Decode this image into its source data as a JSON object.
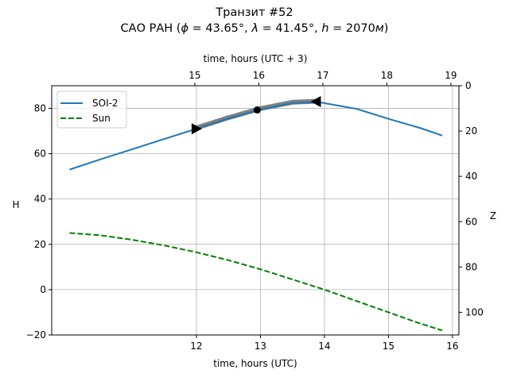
{
  "chart_data": {
    "type": "line",
    "title": "Транзит #52",
    "subtitle": "САО РАН ($\\phi = 43.65°, \\lambda = 41.45°, h = 2070 м$)",
    "subtitle_parts": {
      "prefix": "САО РАН (",
      "phi": "ϕ",
      "phi_val": " = 43.65°, ",
      "lambda": "λ",
      "lambda_val": " = 41.45°, ",
      "h": "h",
      "h_val": " = 2070",
      "unit": "м",
      "suffix": ")"
    },
    "xlabel": "time, hours (UTC)",
    "x2label": "time, hours (UTC + 3)",
    "ylabel": "H",
    "y2label": "Z",
    "xlim": [
      9.74,
      16.1
    ],
    "ylim": [
      -20,
      90
    ],
    "y2lim": [
      0,
      110
    ],
    "xticks": [
      "12",
      "13",
      "14",
      "15",
      "16"
    ],
    "xtick_values": [
      12,
      13,
      14,
      15,
      16
    ],
    "x2ticks": [
      "15",
      "16",
      "17",
      "18",
      "19"
    ],
    "yticks": [
      "−20",
      "0",
      "20",
      "40",
      "60",
      "80"
    ],
    "ytick_values": [
      -20,
      0,
      20,
      40,
      60,
      80
    ],
    "y2ticks": [
      "0",
      "20",
      "40",
      "60",
      "80",
      "100"
    ],
    "y2tick_values": [
      0,
      20,
      40,
      60,
      80,
      100
    ],
    "grid": true,
    "legend": {
      "placement": "top-left",
      "entries": [
        "SOI-2",
        "Sun"
      ]
    },
    "series": [
      {
        "name": "SOI-2",
        "color": "#1f77b4",
        "style": "solid",
        "x": [
          10.02,
          10.5,
          11,
          11.5,
          12,
          12.5,
          13,
          13.5,
          13.9,
          14.5,
          15,
          15.5,
          15.84
        ],
        "y": [
          53,
          57.5,
          62,
          66.5,
          71,
          75.5,
          79.5,
          82.3,
          82.8,
          79.8,
          75.4,
          71.3,
          68
        ]
      },
      {
        "name": "Sun",
        "color": "#008000",
        "style": "dashed",
        "x": [
          10.02,
          10.5,
          11,
          11.5,
          12,
          12.5,
          13,
          13.5,
          14,
          14.5,
          15,
          15.5,
          15.84
        ],
        "y": [
          25,
          24,
          22,
          19.5,
          16.5,
          13,
          9,
          4.5,
          0,
          -5,
          -10,
          -15,
          -18
        ]
      }
    ],
    "transit_segment": {
      "x_start": 12,
      "x_end": 13.87,
      "color": "#808080"
    },
    "markers": [
      {
        "type": "triangle-right",
        "x": 12,
        "y": 71
      },
      {
        "type": "circle",
        "x": 12.95,
        "y": 79.3
      },
      {
        "type": "triangle-left",
        "x": 13.87,
        "y": 83
      }
    ]
  }
}
